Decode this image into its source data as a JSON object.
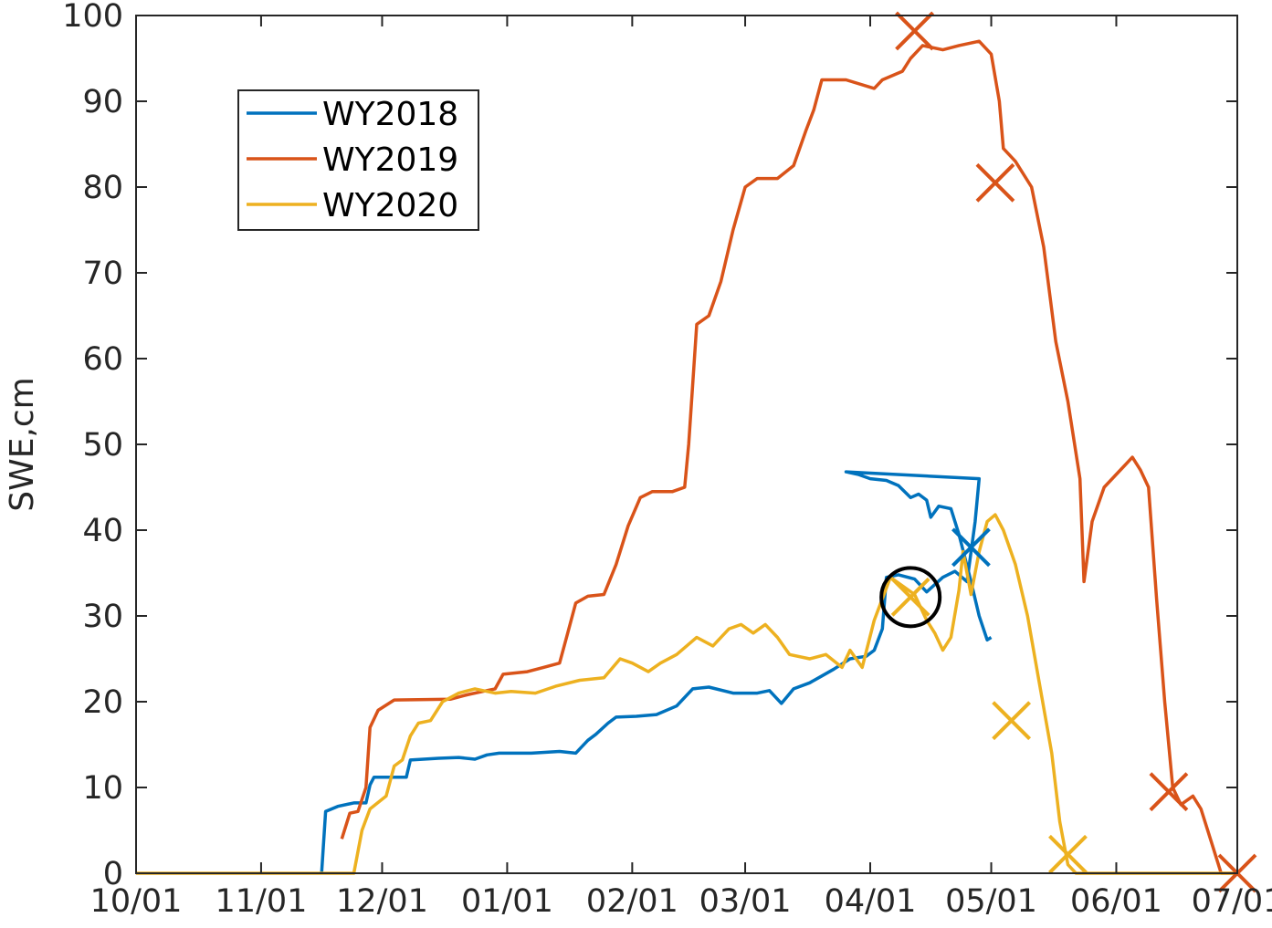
{
  "chart_data": {
    "type": "line",
    "title": "",
    "xlabel": "",
    "ylabel": "SWE,cm",
    "xlim": [
      "10/01",
      "07/01"
    ],
    "ylim": [
      0,
      100
    ],
    "yticks": [
      0,
      10,
      20,
      30,
      40,
      50,
      60,
      70,
      80,
      90,
      100
    ],
    "xticks": [
      "10/01",
      "11/01",
      "12/01",
      "01/01",
      "02/01",
      "03/01",
      "04/01",
      "05/01",
      "06/01",
      "07/01"
    ],
    "grid": false,
    "legend_position": "top-left",
    "series": [
      {
        "name": "WY2018",
        "color": "#0072BD",
        "points": [
          [
            "11/16",
            0
          ],
          [
            "11/17",
            7.2
          ],
          [
            "11/20",
            7.8
          ],
          [
            "11/24",
            8.2
          ],
          [
            "11/27",
            8.2
          ],
          [
            "11/28",
            10.3
          ],
          [
            "11/29",
            11.2
          ],
          [
            "12/04",
            11.2
          ],
          [
            "12/07",
            11.2
          ],
          [
            "12/08",
            13.2
          ],
          [
            "12/15",
            13.4
          ],
          [
            "12/20",
            13.5
          ],
          [
            "12/24",
            13.3
          ],
          [
            "12/27",
            13.8
          ],
          [
            "12/30",
            14.0
          ],
          [
            "01/07",
            14.0
          ],
          [
            "01/14",
            14.2
          ],
          [
            "01/18",
            14.0
          ],
          [
            "01/21",
            15.5
          ],
          [
            "01/23",
            16.2
          ],
          [
            "01/26",
            17.5
          ],
          [
            "01/28",
            18.2
          ],
          [
            "02/02",
            18.3
          ],
          [
            "02/07",
            18.5
          ],
          [
            "02/12",
            19.5
          ],
          [
            "02/16",
            21.5
          ],
          [
            "02/20",
            21.7
          ],
          [
            "02/26",
            21.0
          ],
          [
            "03/04",
            21.0
          ],
          [
            "03/07",
            21.3
          ],
          [
            "03/10",
            19.8
          ],
          [
            "03/13",
            21.5
          ],
          [
            "03/17",
            22.2
          ],
          [
            "03/20",
            23.0
          ],
          [
            "03/23",
            23.8
          ],
          [
            "03/27",
            25.0
          ],
          [
            "03/31",
            25.3
          ],
          [
            "04/02",
            26.0
          ],
          [
            "04/04",
            28.5
          ],
          [
            "04/05",
            34.5
          ],
          [
            "04/08",
            34.8
          ],
          [
            "04/12",
            34.3
          ],
          [
            "04/15",
            32.8
          ],
          [
            "04/19",
            34.5
          ],
          [
            "04/22",
            35.2
          ],
          [
            "04/25",
            34.0
          ],
          [
            "04/27",
            41.0
          ],
          [
            "04/28",
            46.0
          ],
          [
            "03/26",
            46.8
          ],
          [
            "03/29",
            46.5
          ],
          [
            "04/01",
            46.0
          ],
          [
            "04/05",
            45.8
          ],
          [
            "04/08",
            45.2
          ],
          [
            "04/11",
            43.8
          ],
          [
            "04/13",
            44.2
          ],
          [
            "04/15",
            43.5
          ],
          [
            "04/16",
            41.5
          ],
          [
            "04/18",
            42.8
          ],
          [
            "04/21",
            42.5
          ],
          [
            "04/23",
            39.5
          ],
          [
            "04/26",
            34.0
          ],
          [
            "04/28",
            30.0
          ],
          [
            "04/30",
            27.2
          ],
          [
            "05/01",
            27.5
          ]
        ]
      },
      {
        "name": "WY2019",
        "color": "#D95319",
        "points": [
          [
            "11/21",
            4.0
          ],
          [
            "11/23",
            7.0
          ],
          [
            "11/25",
            7.2
          ],
          [
            "11/27",
            10.0
          ],
          [
            "11/28",
            17.0
          ],
          [
            "11/30",
            19.0
          ],
          [
            "12/04",
            20.2
          ],
          [
            "12/18",
            20.3
          ],
          [
            "12/22",
            20.8
          ],
          [
            "12/26",
            21.2
          ],
          [
            "12/29",
            21.5
          ],
          [
            "12/31",
            23.2
          ],
          [
            "01/06",
            23.5
          ],
          [
            "01/10",
            24.0
          ],
          [
            "01/14",
            24.5
          ],
          [
            "01/16",
            28.0
          ],
          [
            "01/18",
            31.5
          ],
          [
            "01/21",
            32.3
          ],
          [
            "01/25",
            32.5
          ],
          [
            "01/28",
            36.0
          ],
          [
            "01/31",
            40.5
          ],
          [
            "02/03",
            43.8
          ],
          [
            "02/06",
            44.5
          ],
          [
            "02/11",
            44.5
          ],
          [
            "02/14",
            45.0
          ],
          [
            "02/15",
            50.0
          ],
          [
            "02/17",
            64.0
          ],
          [
            "02/20",
            65.0
          ],
          [
            "02/23",
            69.0
          ],
          [
            "02/26",
            75.0
          ],
          [
            "03/01",
            80.0
          ],
          [
            "03/04",
            81.0
          ],
          [
            "03/09",
            81.0
          ],
          [
            "03/13",
            82.5
          ],
          [
            "03/16",
            86.5
          ],
          [
            "03/18",
            89.0
          ],
          [
            "03/20",
            92.5
          ],
          [
            "03/26",
            92.5
          ],
          [
            "04/02",
            91.5
          ],
          [
            "04/04",
            92.5
          ],
          [
            "04/09",
            93.5
          ],
          [
            "04/11",
            95.0
          ],
          [
            "04/14",
            96.5
          ],
          [
            "04/19",
            96.0
          ],
          [
            "04/23",
            96.5
          ],
          [
            "04/28",
            97.0
          ],
          [
            "05/01",
            95.5
          ],
          [
            "05/03",
            90.0
          ],
          [
            "05/04",
            84.5
          ],
          [
            "05/07",
            83.0
          ],
          [
            "05/11",
            80.0
          ],
          [
            "05/14",
            73.0
          ],
          [
            "05/17",
            62.0
          ],
          [
            "05/20",
            55.0
          ],
          [
            "05/23",
            46.0
          ],
          [
            "05/24",
            34.0
          ],
          [
            "05/26",
            41.0
          ],
          [
            "05/29",
            45.0
          ],
          [
            "06/03",
            47.5
          ],
          [
            "06/05",
            48.5
          ],
          [
            "06/07",
            47.0
          ],
          [
            "06/09",
            45.0
          ],
          [
            "06/11",
            32.0
          ],
          [
            "06/13",
            20.0
          ],
          [
            "06/15",
            10.0
          ],
          [
            "06/17",
            8.0
          ],
          [
            "06/20",
            9.0
          ],
          [
            "06/22",
            7.5
          ],
          [
            "06/25",
            3.0
          ],
          [
            "06/27",
            0.0
          ],
          [
            "07/01",
            0.0
          ]
        ]
      },
      {
        "name": "WY2020",
        "color": "#EDB120",
        "points": [
          [
            "10/01",
            0
          ],
          [
            "11/24",
            0
          ],
          [
            "11/26",
            5.0
          ],
          [
            "11/28",
            7.5
          ],
          [
            "12/02",
            9.0
          ],
          [
            "12/04",
            12.5
          ],
          [
            "12/06",
            13.2
          ],
          [
            "12/08",
            16.0
          ],
          [
            "12/10",
            17.5
          ],
          [
            "12/13",
            17.8
          ],
          [
            "12/16",
            20.0
          ],
          [
            "12/20",
            21.0
          ],
          [
            "12/24",
            21.5
          ],
          [
            "12/29",
            21.0
          ],
          [
            "01/02",
            21.2
          ],
          [
            "01/08",
            21.0
          ],
          [
            "01/13",
            21.8
          ],
          [
            "01/19",
            22.5
          ],
          [
            "01/25",
            22.8
          ],
          [
            "01/29",
            25.0
          ],
          [
            "02/01",
            24.5
          ],
          [
            "02/05",
            23.5
          ],
          [
            "02/08",
            24.5
          ],
          [
            "02/12",
            25.5
          ],
          [
            "02/17",
            27.5
          ],
          [
            "02/21",
            26.5
          ],
          [
            "02/25",
            28.5
          ],
          [
            "02/28",
            29.0
          ],
          [
            "03/03",
            28.0
          ],
          [
            "03/06",
            29.0
          ],
          [
            "03/09",
            27.5
          ],
          [
            "03/12",
            25.5
          ],
          [
            "03/17",
            25.0
          ],
          [
            "03/21",
            25.5
          ],
          [
            "03/25",
            24.0
          ],
          [
            "03/27",
            26.0
          ],
          [
            "03/30",
            24.0
          ],
          [
            "04/02",
            29.5
          ],
          [
            "04/06",
            34.5
          ],
          [
            "04/09",
            33.5
          ],
          [
            "04/12",
            32.5
          ],
          [
            "04/15",
            29.5
          ],
          [
            "04/17",
            28.0
          ],
          [
            "04/19",
            26.0
          ],
          [
            "04/21",
            27.5
          ],
          [
            "04/23",
            33.0
          ],
          [
            "04/24",
            37.5
          ],
          [
            "04/26",
            32.5
          ],
          [
            "04/28",
            37.5
          ],
          [
            "04/30",
            41.0
          ],
          [
            "05/02",
            41.8
          ],
          [
            "05/04",
            40.0
          ],
          [
            "05/07",
            36.0
          ],
          [
            "05/10",
            30.0
          ],
          [
            "05/13",
            22.0
          ],
          [
            "05/16",
            14.0
          ],
          [
            "05/18",
            6.0
          ],
          [
            "05/20",
            1.0
          ],
          [
            "05/22",
            0.0
          ],
          [
            "07/01",
            0.0
          ]
        ]
      }
    ],
    "markers": [
      {
        "series": "WY2019",
        "x": "04/12",
        "y": 98.2,
        "symbol": "x"
      },
      {
        "series": "WY2019",
        "x": "05/02",
        "y": 80.5,
        "symbol": "x"
      },
      {
        "series": "WY2019",
        "x": "06/14",
        "y": 9.5,
        "symbol": "x"
      },
      {
        "series": "WY2019",
        "x": "07/01",
        "y": 0.0,
        "symbol": "x"
      },
      {
        "series": "WY2018",
        "x": "04/26",
        "y": 38.0,
        "symbol": "x"
      },
      {
        "series": "WY2020",
        "x": "04/11",
        "y": 32.2,
        "symbol": "x"
      },
      {
        "series": "WY2020",
        "x": "05/06",
        "y": 17.8,
        "symbol": "x"
      },
      {
        "series": "WY2020",
        "x": "05/20",
        "y": 2.2,
        "symbol": "x"
      }
    ],
    "annotation_circle": {
      "x": "04/11",
      "y": 32.2,
      "color": "#000000"
    }
  }
}
